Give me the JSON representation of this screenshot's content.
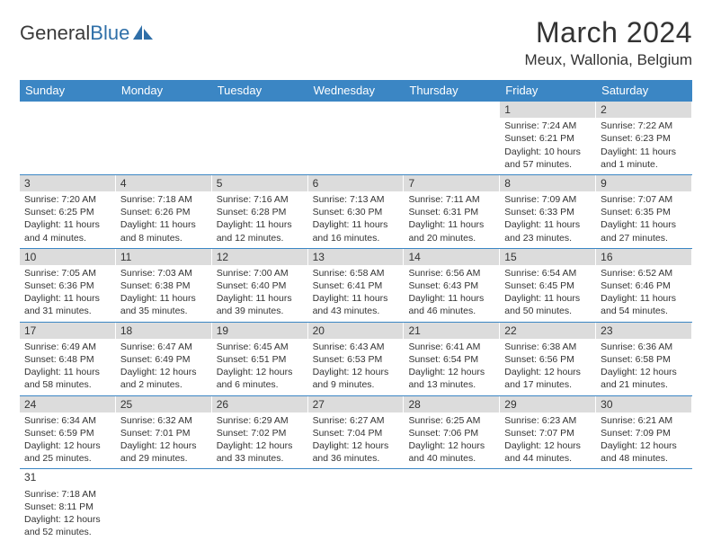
{
  "logo": {
    "text_dark": "General",
    "text_blue": "Blue"
  },
  "header": {
    "title": "March 2024",
    "location": "Meux, Wallonia, Belgium"
  },
  "styling": {
    "header_bg": "#3b86c4",
    "header_text": "#ffffff",
    "daynum_bg": "#dcdcdc",
    "row_border": "#3b86c4",
    "body_text": "#333333",
    "title_fontsize": 32,
    "location_fontsize": 17,
    "weekday_fontsize": 13,
    "day_fontsize": 10.5
  },
  "weekdays": [
    "Sunday",
    "Monday",
    "Tuesday",
    "Wednesday",
    "Thursday",
    "Friday",
    "Saturday"
  ],
  "weeks": [
    [
      null,
      null,
      null,
      null,
      null,
      {
        "n": "1",
        "sr": "Sunrise: 7:24 AM",
        "ss": "Sunset: 6:21 PM",
        "d1": "Daylight: 10 hours",
        "d2": "and 57 minutes."
      },
      {
        "n": "2",
        "sr": "Sunrise: 7:22 AM",
        "ss": "Sunset: 6:23 PM",
        "d1": "Daylight: 11 hours",
        "d2": "and 1 minute."
      }
    ],
    [
      {
        "n": "3",
        "sr": "Sunrise: 7:20 AM",
        "ss": "Sunset: 6:25 PM",
        "d1": "Daylight: 11 hours",
        "d2": "and 4 minutes."
      },
      {
        "n": "4",
        "sr": "Sunrise: 7:18 AM",
        "ss": "Sunset: 6:26 PM",
        "d1": "Daylight: 11 hours",
        "d2": "and 8 minutes."
      },
      {
        "n": "5",
        "sr": "Sunrise: 7:16 AM",
        "ss": "Sunset: 6:28 PM",
        "d1": "Daylight: 11 hours",
        "d2": "and 12 minutes."
      },
      {
        "n": "6",
        "sr": "Sunrise: 7:13 AM",
        "ss": "Sunset: 6:30 PM",
        "d1": "Daylight: 11 hours",
        "d2": "and 16 minutes."
      },
      {
        "n": "7",
        "sr": "Sunrise: 7:11 AM",
        "ss": "Sunset: 6:31 PM",
        "d1": "Daylight: 11 hours",
        "d2": "and 20 minutes."
      },
      {
        "n": "8",
        "sr": "Sunrise: 7:09 AM",
        "ss": "Sunset: 6:33 PM",
        "d1": "Daylight: 11 hours",
        "d2": "and 23 minutes."
      },
      {
        "n": "9",
        "sr": "Sunrise: 7:07 AM",
        "ss": "Sunset: 6:35 PM",
        "d1": "Daylight: 11 hours",
        "d2": "and 27 minutes."
      }
    ],
    [
      {
        "n": "10",
        "sr": "Sunrise: 7:05 AM",
        "ss": "Sunset: 6:36 PM",
        "d1": "Daylight: 11 hours",
        "d2": "and 31 minutes."
      },
      {
        "n": "11",
        "sr": "Sunrise: 7:03 AM",
        "ss": "Sunset: 6:38 PM",
        "d1": "Daylight: 11 hours",
        "d2": "and 35 minutes."
      },
      {
        "n": "12",
        "sr": "Sunrise: 7:00 AM",
        "ss": "Sunset: 6:40 PM",
        "d1": "Daylight: 11 hours",
        "d2": "and 39 minutes."
      },
      {
        "n": "13",
        "sr": "Sunrise: 6:58 AM",
        "ss": "Sunset: 6:41 PM",
        "d1": "Daylight: 11 hours",
        "d2": "and 43 minutes."
      },
      {
        "n": "14",
        "sr": "Sunrise: 6:56 AM",
        "ss": "Sunset: 6:43 PM",
        "d1": "Daylight: 11 hours",
        "d2": "and 46 minutes."
      },
      {
        "n": "15",
        "sr": "Sunrise: 6:54 AM",
        "ss": "Sunset: 6:45 PM",
        "d1": "Daylight: 11 hours",
        "d2": "and 50 minutes."
      },
      {
        "n": "16",
        "sr": "Sunrise: 6:52 AM",
        "ss": "Sunset: 6:46 PM",
        "d1": "Daylight: 11 hours",
        "d2": "and 54 minutes."
      }
    ],
    [
      {
        "n": "17",
        "sr": "Sunrise: 6:49 AM",
        "ss": "Sunset: 6:48 PM",
        "d1": "Daylight: 11 hours",
        "d2": "and 58 minutes."
      },
      {
        "n": "18",
        "sr": "Sunrise: 6:47 AM",
        "ss": "Sunset: 6:49 PM",
        "d1": "Daylight: 12 hours",
        "d2": "and 2 minutes."
      },
      {
        "n": "19",
        "sr": "Sunrise: 6:45 AM",
        "ss": "Sunset: 6:51 PM",
        "d1": "Daylight: 12 hours",
        "d2": "and 6 minutes."
      },
      {
        "n": "20",
        "sr": "Sunrise: 6:43 AM",
        "ss": "Sunset: 6:53 PM",
        "d1": "Daylight: 12 hours",
        "d2": "and 9 minutes."
      },
      {
        "n": "21",
        "sr": "Sunrise: 6:41 AM",
        "ss": "Sunset: 6:54 PM",
        "d1": "Daylight: 12 hours",
        "d2": "and 13 minutes."
      },
      {
        "n": "22",
        "sr": "Sunrise: 6:38 AM",
        "ss": "Sunset: 6:56 PM",
        "d1": "Daylight: 12 hours",
        "d2": "and 17 minutes."
      },
      {
        "n": "23",
        "sr": "Sunrise: 6:36 AM",
        "ss": "Sunset: 6:58 PM",
        "d1": "Daylight: 12 hours",
        "d2": "and 21 minutes."
      }
    ],
    [
      {
        "n": "24",
        "sr": "Sunrise: 6:34 AM",
        "ss": "Sunset: 6:59 PM",
        "d1": "Daylight: 12 hours",
        "d2": "and 25 minutes."
      },
      {
        "n": "25",
        "sr": "Sunrise: 6:32 AM",
        "ss": "Sunset: 7:01 PM",
        "d1": "Daylight: 12 hours",
        "d2": "and 29 minutes."
      },
      {
        "n": "26",
        "sr": "Sunrise: 6:29 AM",
        "ss": "Sunset: 7:02 PM",
        "d1": "Daylight: 12 hours",
        "d2": "and 33 minutes."
      },
      {
        "n": "27",
        "sr": "Sunrise: 6:27 AM",
        "ss": "Sunset: 7:04 PM",
        "d1": "Daylight: 12 hours",
        "d2": "and 36 minutes."
      },
      {
        "n": "28",
        "sr": "Sunrise: 6:25 AM",
        "ss": "Sunset: 7:06 PM",
        "d1": "Daylight: 12 hours",
        "d2": "and 40 minutes."
      },
      {
        "n": "29",
        "sr": "Sunrise: 6:23 AM",
        "ss": "Sunset: 7:07 PM",
        "d1": "Daylight: 12 hours",
        "d2": "and 44 minutes."
      },
      {
        "n": "30",
        "sr": "Sunrise: 6:21 AM",
        "ss": "Sunset: 7:09 PM",
        "d1": "Daylight: 12 hours",
        "d2": "and 48 minutes."
      }
    ],
    [
      {
        "n": "31",
        "sr": "Sunrise: 7:18 AM",
        "ss": "Sunset: 8:11 PM",
        "d1": "Daylight: 12 hours",
        "d2": "and 52 minutes."
      },
      null,
      null,
      null,
      null,
      null,
      null
    ]
  ]
}
